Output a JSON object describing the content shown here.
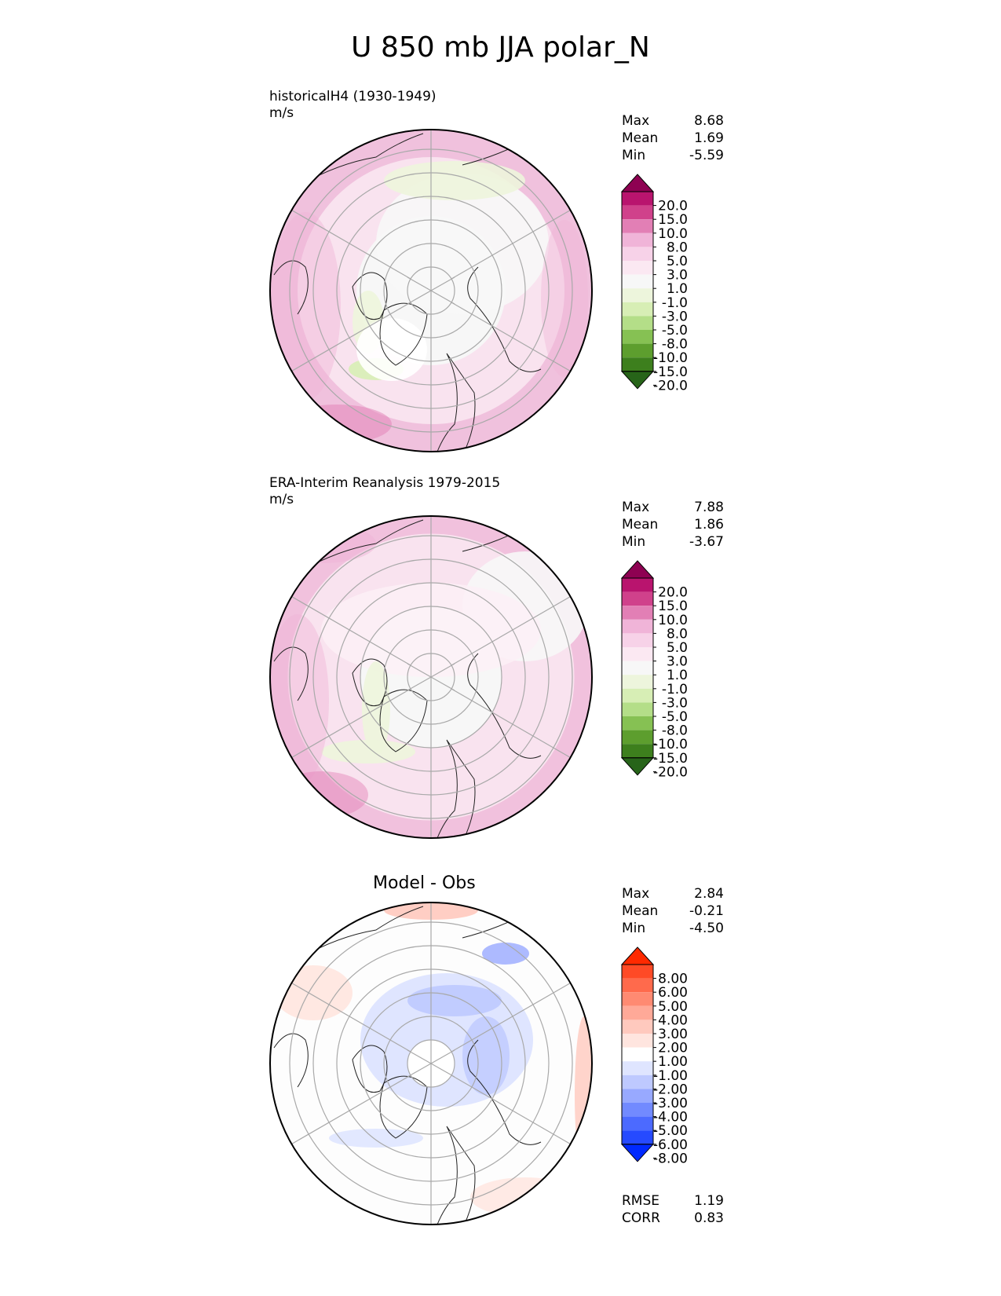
{
  "title": "U 850 mb JJA polar_N",
  "panels": [
    {
      "id": "model",
      "title_lines": [
        "historicalH4 (1930-1949)",
        "m/s"
      ],
      "stats": [
        {
          "label": "Max",
          "value": "8.68"
        },
        {
          "label": "Mean",
          "value": "1.69"
        },
        {
          "label": "Min",
          "value": "-5.59"
        }
      ],
      "colorbar_labels": [
        "20.0",
        "15.0",
        "10.0",
        "8.0",
        "5.0",
        "3.0",
        "1.0",
        "-1.0",
        "-3.0",
        "-5.0",
        "-8.0",
        "-10.0",
        "-15.0",
        "-20.0"
      ],
      "colorbar_colors": [
        "#8e0152",
        "#b9146e",
        "#d0418b",
        "#e27fb5",
        "#f0b4d8",
        "#f7d2e8",
        "#fbe8f2",
        "#f7f7f7",
        "#edf5dc",
        "#d7eeb5",
        "#b4de88",
        "#86c153",
        "#5d9e2e",
        "#3d7f1d",
        "#276419"
      ]
    },
    {
      "id": "obs",
      "title_lines": [
        "ERA-Interim Reanalysis 1979-2015",
        "m/s"
      ],
      "stats": [
        {
          "label": "Max",
          "value": "7.88"
        },
        {
          "label": "Mean",
          "value": "1.86"
        },
        {
          "label": "Min",
          "value": "-3.67"
        }
      ],
      "colorbar_labels": [
        "20.0",
        "15.0",
        "10.0",
        "8.0",
        "5.0",
        "3.0",
        "1.0",
        "-1.0",
        "-3.0",
        "-5.0",
        "-8.0",
        "-10.0",
        "-15.0",
        "-20.0"
      ],
      "colorbar_colors": [
        "#8e0152",
        "#b9146e",
        "#d0418b",
        "#e27fb5",
        "#f0b4d8",
        "#f7d2e8",
        "#fbe8f2",
        "#f7f7f7",
        "#edf5dc",
        "#d7eeb5",
        "#b4de88",
        "#86c153",
        "#5d9e2e",
        "#3d7f1d",
        "#276419"
      ]
    },
    {
      "id": "diff",
      "title": "Model - Obs",
      "stats": [
        {
          "label": "Max",
          "value": "2.84"
        },
        {
          "label": "Mean",
          "value": "-0.21"
        },
        {
          "label": "Min",
          "value": "-4.50"
        }
      ],
      "extra_stats": [
        {
          "label": "RMSE",
          "value": "1.19"
        },
        {
          "label": "CORR",
          "value": "0.83"
        }
      ],
      "colorbar_labels": [
        "8.00",
        "6.00",
        "5.00",
        "4.00",
        "3.00",
        "2.00",
        "1.00",
        "-1.00",
        "-2.00",
        "-3.00",
        "-4.00",
        "-5.00",
        "-6.00",
        "-8.00"
      ],
      "colorbar_colors": [
        "#ff2a00",
        "#ff4a26",
        "#ff6a4c",
        "#ff8a72",
        "#ffa998",
        "#ffc9be",
        "#ffe5df",
        "#ffffff",
        "#dfe5ff",
        "#bec9ff",
        "#98a9ff",
        "#728aff",
        "#4c6aff",
        "#264aff",
        "#0029ff"
      ]
    }
  ]
}
